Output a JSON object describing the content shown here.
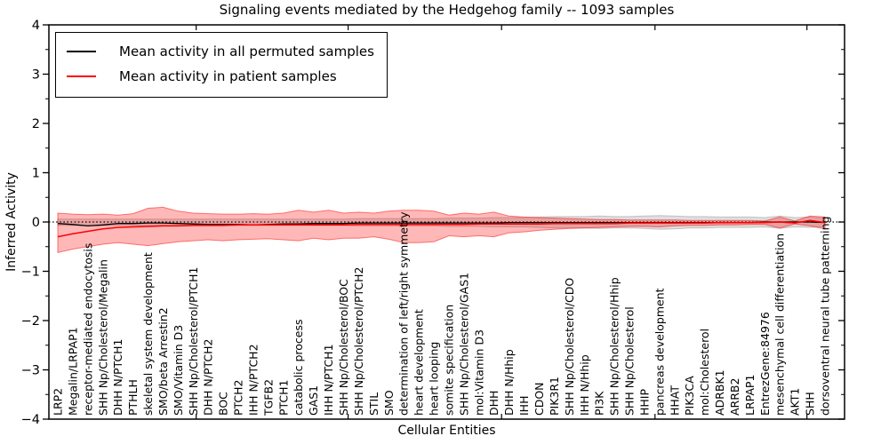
{
  "figure": {
    "title": "Signaling events mediated by the Hedgehog family -- 1093 samples",
    "xlabel": "Cellular Entities",
    "ylabel": "Inferred Activity"
  },
  "legend": {
    "entries": [
      {
        "label": "Mean activity in all permuted samples",
        "color": "#000000"
      },
      {
        "label": "Mean activity in patient samples",
        "color": "#ff0000"
      }
    ]
  },
  "chart_data": {
    "type": "line",
    "title": "Signaling events mediated by the Hedgehog family -- 1093 samples",
    "xlabel": "Cellular Entities",
    "ylabel": "Inferred Activity",
    "ylim": [
      -4,
      4
    ],
    "yticks": [
      4,
      3,
      2,
      1,
      0,
      -1,
      -2,
      -3,
      -4
    ],
    "ytick_labels": [
      "4",
      "3",
      "2",
      "1",
      "0",
      "−1",
      "−2",
      "−3",
      "−4"
    ],
    "ytick_minor_step": 0.5,
    "grid": false,
    "zero_line": {
      "y": 0,
      "style": "dotted",
      "color": "#000000"
    },
    "legend_position": "upper left",
    "colors": {
      "permuted": "#000000",
      "patient": "#ff0000",
      "patient_band_fill": "rgba(255,0,0,0.28)",
      "patient_band_edge": "rgba(255,0,0,0.5)",
      "permuted_band_fill": "rgba(128,128,128,0.25)",
      "permuted_band_edge": "rgba(128,128,128,0.4)"
    },
    "categories": [
      "LRP2",
      "Megalin/LRPAP1",
      "receptor-mediated endocytosis",
      "SHH Np/Cholesterol/Megalin",
      "DHH N/PTCH1",
      "PTHLH",
      "skeletal system development",
      "SMO/beta Arrestin2",
      "SMO/Vitamin D3",
      "SHH Np/Cholesterol/PTCH1",
      "DHH N/PTCH2",
      "BOC",
      "PTCH2",
      "IHH N/PTCH2",
      "TGFB2",
      "PTCH1",
      "catabolic process",
      "GAS1",
      "IHH N/PTCH1",
      "SHH Np/Cholesterol/BOC",
      "SHH Np/Cholesterol/PTCH2",
      "STIL",
      "SMO",
      "determination of left/right symmetry",
      "heart development",
      "heart looping",
      "somite specification",
      "SHH Np/Cholesterol/GAS1",
      "mol:Vitamin D3",
      "DHH",
      "DHH N/Hhip",
      "IHH",
      "CDON",
      "PIK3R1",
      "SHH Np/Cholesterol/CDO",
      "IHH N/Hhip",
      "PI3K",
      "SHH Np/Cholesterol/Hhip",
      "SHH Np/Cholesterol",
      "HHIP",
      "pancreas development",
      "HHAT",
      "PIK3CA",
      "mol:Cholesterol",
      "ADRBK1",
      "ARRB2",
      "LRPAP1",
      "EntrezGene:84976",
      "mesenchymal cell differentiation",
      "AKT1",
      "SHH",
      "dorsoventral neural tube patterning"
    ],
    "series": [
      {
        "name": "Mean activity in all permuted samples",
        "color": "#000000",
        "values": [
          -0.03,
          -0.05,
          -0.08,
          -0.06,
          -0.03,
          -0.03,
          -0.02,
          -0.02,
          -0.03,
          -0.04,
          -0.05,
          -0.05,
          -0.05,
          -0.06,
          -0.05,
          -0.04,
          -0.04,
          -0.03,
          -0.03,
          -0.03,
          -0.02,
          -0.02,
          -0.02,
          -0.02,
          -0.02,
          -0.02,
          -0.02,
          -0.02,
          -0.02,
          -0.02,
          -0.01,
          -0.01,
          -0.01,
          -0.01,
          -0.01,
          -0.01,
          -0.01,
          -0.01,
          -0.01,
          -0.01,
          -0.01,
          -0.01,
          -0.01,
          -0.01,
          -0.01,
          -0.01,
          -0.01,
          0.0,
          0.0,
          0.0,
          0.0,
          -0.01
        ]
      },
      {
        "name": "Mean activity in patient samples",
        "color": "#ff0000",
        "values": [
          -0.3,
          -0.24,
          -0.19,
          -0.14,
          -0.11,
          -0.1,
          -0.09,
          -0.08,
          -0.08,
          -0.07,
          -0.07,
          -0.07,
          -0.06,
          -0.06,
          -0.06,
          -0.06,
          -0.06,
          -0.06,
          -0.06,
          -0.06,
          -0.05,
          -0.05,
          -0.05,
          -0.05,
          -0.05,
          -0.05,
          -0.05,
          -0.05,
          -0.04,
          -0.04,
          -0.04,
          -0.04,
          -0.04,
          -0.03,
          -0.03,
          -0.03,
          -0.03,
          -0.03,
          -0.02,
          -0.02,
          -0.02,
          -0.02,
          -0.02,
          -0.02,
          -0.01,
          -0.01,
          -0.01,
          -0.01,
          0.0,
          -0.02,
          0.03,
          -0.01
        ]
      }
    ],
    "bands": [
      {
        "name": "permuted samples spread",
        "fill": "rgba(128,128,128,0.25)",
        "edge": "rgba(128,128,128,0.4)",
        "upper": [
          0.06,
          0.06,
          0.06,
          0.06,
          0.06,
          0.06,
          0.06,
          0.06,
          0.06,
          0.06,
          0.06,
          0.06,
          0.06,
          0.06,
          0.06,
          0.06,
          0.06,
          0.06,
          0.06,
          0.06,
          0.07,
          0.07,
          0.07,
          0.07,
          0.07,
          0.07,
          0.08,
          0.08,
          0.08,
          0.09,
          0.09,
          0.09,
          0.1,
          0.11,
          0.11,
          0.11,
          0.12,
          0.11,
          0.11,
          0.12,
          0.13,
          0.12,
          0.11,
          0.11,
          0.1,
          0.1,
          0.1,
          0.09,
          0.12,
          0.09,
          0.1,
          0.08
        ],
        "lower": [
          -0.07,
          -0.07,
          -0.07,
          -0.07,
          -0.07,
          -0.07,
          -0.07,
          -0.07,
          -0.07,
          -0.07,
          -0.07,
          -0.07,
          -0.07,
          -0.07,
          -0.07,
          -0.07,
          -0.07,
          -0.07,
          -0.07,
          -0.07,
          -0.08,
          -0.08,
          -0.08,
          -0.08,
          -0.08,
          -0.08,
          -0.09,
          -0.09,
          -0.09,
          -0.1,
          -0.1,
          -0.1,
          -0.11,
          -0.12,
          -0.12,
          -0.12,
          -0.13,
          -0.12,
          -0.12,
          -0.13,
          -0.15,
          -0.14,
          -0.12,
          -0.12,
          -0.11,
          -0.11,
          -0.11,
          -0.1,
          -0.13,
          -0.1,
          -0.11,
          -0.09
        ]
      },
      {
        "name": "patient samples spread",
        "fill": "rgba(255,0,0,0.28)",
        "edge": "rgba(255,0,0,0.5)",
        "upper": [
          0.18,
          0.16,
          0.15,
          0.16,
          0.14,
          0.17,
          0.28,
          0.3,
          0.22,
          0.18,
          0.17,
          0.16,
          0.16,
          0.17,
          0.16,
          0.18,
          0.24,
          0.2,
          0.24,
          0.18,
          0.2,
          0.18,
          0.22,
          0.24,
          0.24,
          0.22,
          0.14,
          0.18,
          0.16,
          0.2,
          0.12,
          0.1,
          0.09,
          0.08,
          0.07,
          0.06,
          0.05,
          0.05,
          0.04,
          0.04,
          0.04,
          0.04,
          0.03,
          0.03,
          0.03,
          0.03,
          0.03,
          0.02,
          0.1,
          0.02,
          0.12,
          0.1
        ],
        "lower": [
          -0.62,
          -0.55,
          -0.5,
          -0.45,
          -0.42,
          -0.45,
          -0.48,
          -0.44,
          -0.4,
          -0.38,
          -0.36,
          -0.38,
          -0.36,
          -0.35,
          -0.34,
          -0.36,
          -0.38,
          -0.33,
          -0.36,
          -0.33,
          -0.33,
          -0.3,
          -0.35,
          -0.42,
          -0.42,
          -0.4,
          -0.28,
          -0.3,
          -0.28,
          -0.3,
          -0.22,
          -0.2,
          -0.17,
          -0.15,
          -0.13,
          -0.12,
          -0.11,
          -0.1,
          -0.09,
          -0.09,
          -0.1,
          -0.08,
          -0.07,
          -0.07,
          -0.06,
          -0.06,
          -0.05,
          -0.05,
          -0.12,
          -0.04,
          -0.08,
          -0.14
        ]
      }
    ],
    "xtick_marks_idx": [
      9.2,
      19.3,
      29.5,
      39.7,
      49.8
    ]
  }
}
